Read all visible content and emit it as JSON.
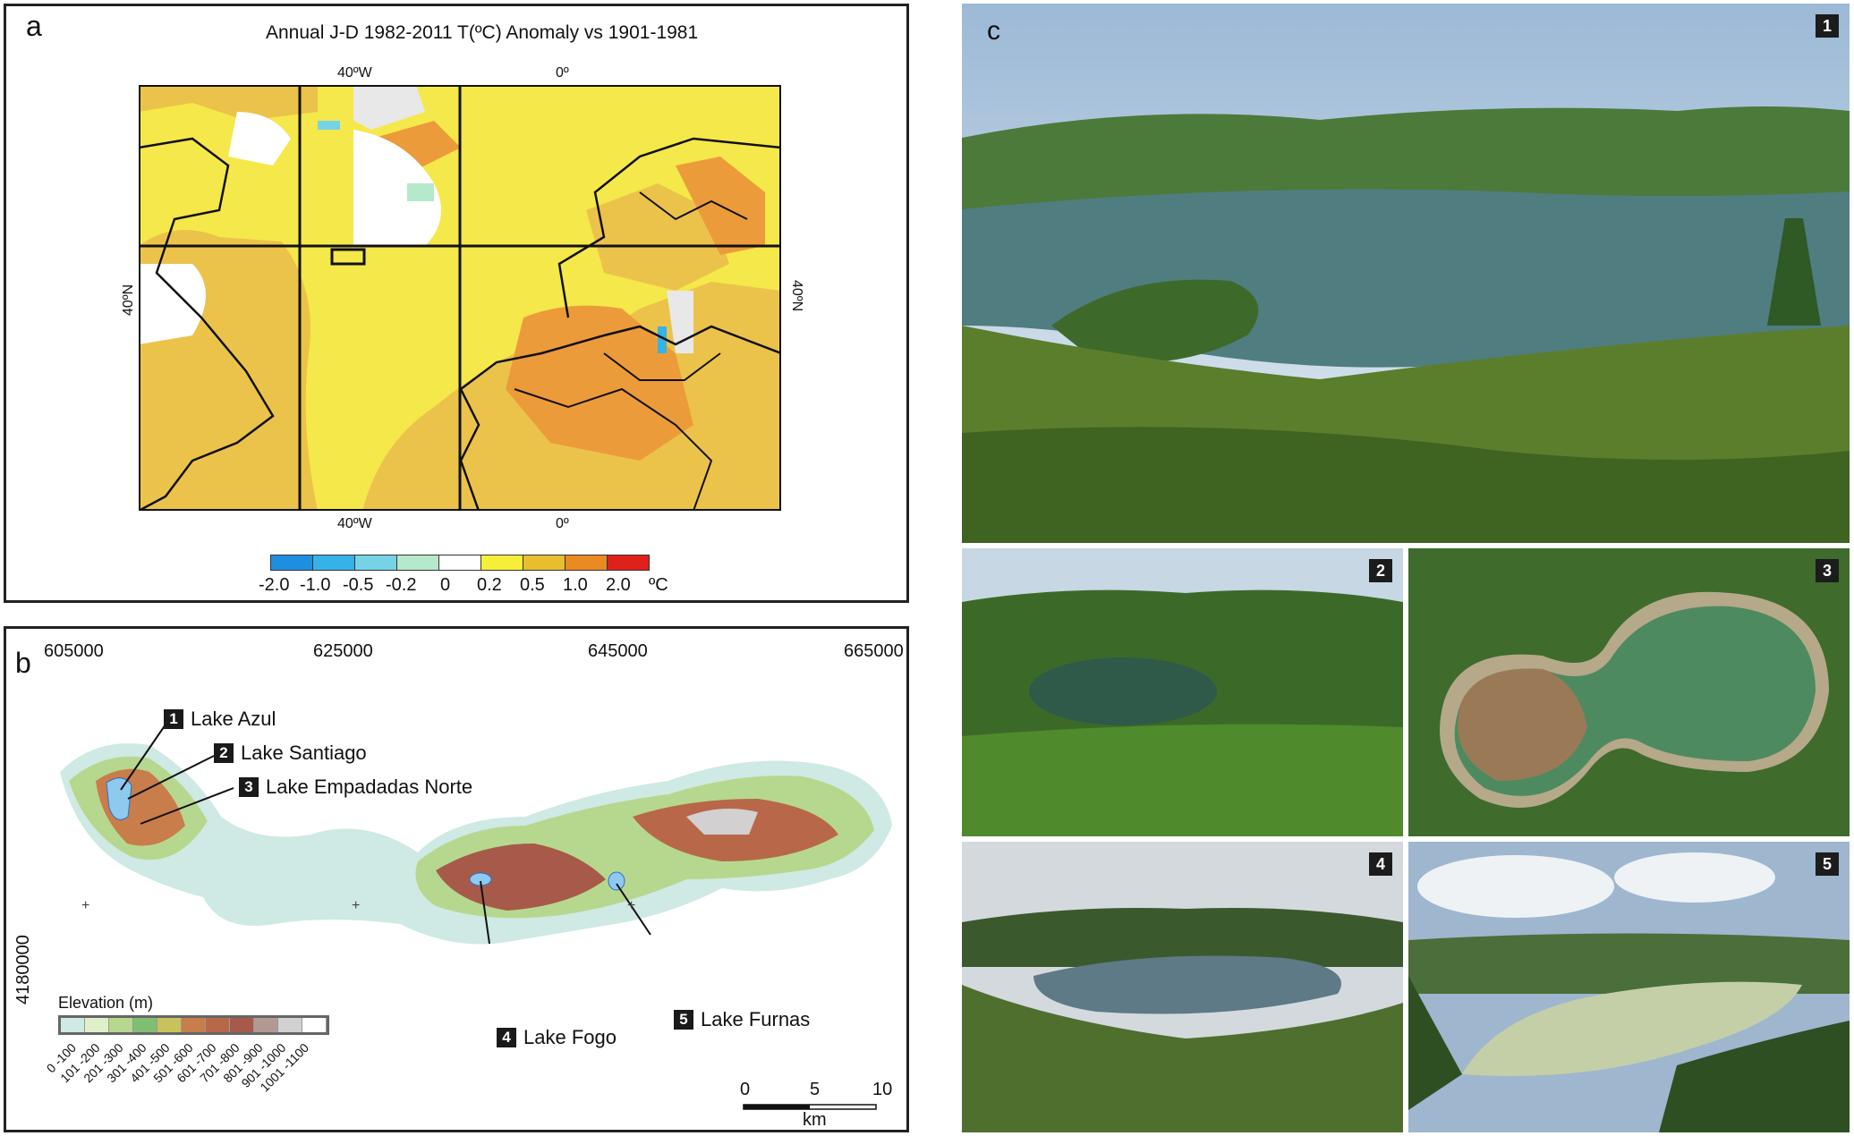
{
  "panel_a": {
    "label": "a",
    "title": "Annual J-D 1982-2011 T(ºC) Anomaly vs 1901-1981",
    "top_ticks": [
      "40ºW",
      "0º"
    ],
    "bottom_ticks": [
      "40ºW",
      "0º"
    ],
    "left_tick": "40ºN",
    "right_tick": "40ºN",
    "colorbar": {
      "colors": [
        "#1e8fe0",
        "#35b3e8",
        "#76d3e6",
        "#b6e8cc",
        "#ffffff",
        "#f7ee3a",
        "#e8bd2e",
        "#ea8a22",
        "#e0201a"
      ],
      "labels": [
        "-2.0",
        "-1.0",
        "-0.5",
        "-0.2",
        "0",
        "0.2",
        "0.5",
        "1.0",
        "2.0",
        "ºC"
      ]
    }
  },
  "panel_b": {
    "label": "b",
    "x_coords": [
      "605000",
      "625000",
      "645000",
      "665000"
    ],
    "y_coord": "4180000",
    "lakes": [
      {
        "num": "1",
        "name": "Lake Azul"
      },
      {
        "num": "2",
        "name": "Lake Santiago"
      },
      {
        "num": "3",
        "name": "Lake Empadadas Norte"
      },
      {
        "num": "4",
        "name": "Lake Fogo"
      },
      {
        "num": "5",
        "name": "Lake Furnas"
      }
    ],
    "elevation_legend": {
      "title": "Elevation (m)",
      "colors": [
        "#cfe9e4",
        "#dff0c8",
        "#b6d88e",
        "#7fbf72",
        "#c9c25c",
        "#c87d4a",
        "#b86848",
        "#a75a4a",
        "#b29a92",
        "#d2d0d0",
        "#ffffff"
      ],
      "labels": [
        "0 -100",
        "101 -200",
        "201 -300",
        "301 -400",
        "401 -500",
        "501 -600",
        "601 -700",
        "701 -800",
        "801 -900",
        "901 -1000",
        "1001 -1100"
      ]
    },
    "scale_bar": {
      "ticks": [
        "0",
        "5",
        "10"
      ],
      "unit": "km"
    }
  },
  "panel_c": {
    "label": "c",
    "photos": [
      "1",
      "2",
      "3",
      "4",
      "5"
    ]
  }
}
